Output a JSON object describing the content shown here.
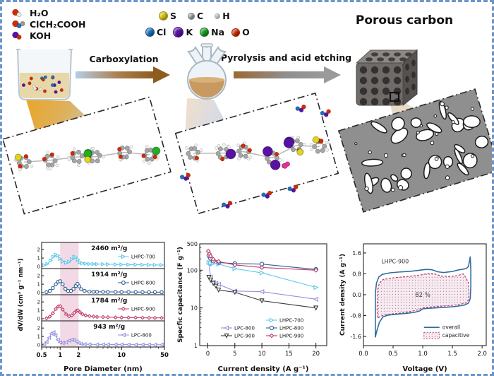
{
  "scheme": {
    "product_title": "Porous carbon",
    "step1_label": "Carboxylation",
    "step2_label": "Pyrolysis and acid etching",
    "reagents": [
      {
        "label": "H₂O",
        "icon_colors": [
          "#d42a00",
          "#e8e8e8"
        ]
      },
      {
        "label": "ClCH₂COOH",
        "icon_colors": [
          "#d42a00",
          "#1c6fbd",
          "#9a9a9a"
        ]
      },
      {
        "label": "KOH",
        "icon_colors": [
          "#5a10a5",
          "#d42a00"
        ]
      }
    ],
    "atoms_row1": [
      {
        "symbol": "S",
        "color": "#d9c414"
      },
      {
        "symbol": "C",
        "color": "#a9a9a9"
      },
      {
        "symbol": "H",
        "color": "#ececec"
      }
    ],
    "atoms_row2": [
      {
        "symbol": "Cl",
        "color": "#1c6fbd"
      },
      {
        "symbol": "K",
        "color": "#5a10a5"
      },
      {
        "symbol": "Na",
        "color": "#17a01e"
      },
      {
        "symbol": "O",
        "color": "#d42a00"
      }
    ]
  },
  "chart_data": [
    {
      "type": "line",
      "id": "psd",
      "xlabel": "Pore Diameter (nm)",
      "ylabel": "dV/dW (cm³ g⁻¹ nm⁻¹)",
      "x_scale": "log",
      "xlim": [
        0.5,
        50
      ],
      "x_ticks": [
        0.5,
        1,
        2,
        10,
        50
      ],
      "x_minor": [
        0.6,
        0.7,
        0.8,
        0.9,
        3,
        4,
        5,
        6,
        7,
        8,
        9,
        20,
        30,
        40
      ],
      "panel_ylim": [
        0,
        2.35
      ],
      "panel_yticks": [
        0,
        1,
        2
      ],
      "highlight_band": [
        1,
        2
      ],
      "band_color": "#e9b9cf",
      "panels": [
        {
          "area": "2460 m²/g",
          "name": "LHPC-700",
          "color": "#5fc8ea",
          "marker": "triangle-right",
          "x": [
            0.55,
            0.62,
            0.7,
            0.78,
            0.85,
            0.92,
            1.0,
            1.1,
            1.25,
            1.4,
            1.55,
            1.7,
            1.8,
            1.95,
            2.1,
            2.3,
            2.6,
            3,
            3.5,
            4,
            5,
            6,
            8,
            10,
            13,
            17,
            22,
            28,
            35,
            45
          ],
          "y": [
            0.15,
            0.3,
            0.7,
            1.15,
            1.4,
            1.3,
            0.9,
            0.6,
            0.45,
            0.55,
            0.85,
            1.15,
            1.1,
            0.8,
            0.5,
            0.38,
            0.33,
            0.3,
            0.29,
            0.28,
            0.27,
            0.26,
            0.24,
            0.23,
            0.22,
            0.21,
            0.2,
            0.19,
            0.18,
            0.17
          ]
        },
        {
          "area": "1914 m²/g",
          "name": "LHPC-800",
          "color": "#2e5e93",
          "marker": "circle",
          "x": [
            0.6,
            0.68,
            0.76,
            0.85,
            0.93,
            1.0,
            1.1,
            1.22,
            1.35,
            1.5,
            1.65,
            1.8,
            1.92,
            2.05,
            2.2,
            2.5,
            3,
            3.5,
            4,
            5,
            6,
            8,
            10,
            13,
            17,
            22,
            28,
            35,
            45
          ],
          "y": [
            0.05,
            0.2,
            0.55,
            1.0,
            1.3,
            1.35,
            1.0,
            0.45,
            0.2,
            0.2,
            0.45,
            0.8,
            1.05,
            0.75,
            0.4,
            0.2,
            0.12,
            0.1,
            0.1,
            0.09,
            0.08,
            0.08,
            0.07,
            0.07,
            0.06,
            0.06,
            0.05,
            0.05,
            0.05
          ]
        },
        {
          "area": "1784 m²/g",
          "name": "LHPC-900",
          "color": "#c23a68",
          "marker": "diamond",
          "x": [
            0.6,
            0.68,
            0.76,
            0.85,
            0.93,
            1.0,
            1.1,
            1.25,
            1.4,
            1.55,
            1.7,
            1.85,
            1.95,
            2.1,
            2.3,
            2.6,
            3,
            3.5,
            4,
            5,
            6,
            8,
            10,
            13,
            17,
            22,
            28,
            35,
            45
          ],
          "y": [
            0.05,
            0.25,
            0.65,
            1.15,
            1.45,
            1.5,
            1.1,
            0.55,
            0.3,
            0.4,
            0.7,
            0.95,
            1.0,
            0.8,
            0.55,
            0.4,
            0.32,
            0.26,
            0.22,
            0.2,
            0.18,
            0.16,
            0.15,
            0.14,
            0.13,
            0.12,
            0.11,
            0.1,
            0.1
          ]
        },
        {
          "area": "943 m²/g",
          "name": "LPC-800",
          "color": "#9292dd",
          "marker": "triangle-left",
          "x": [
            0.55,
            0.6,
            0.66,
            0.72,
            0.78,
            0.84,
            0.92,
            1.0,
            1.1,
            1.25,
            1.4,
            1.55,
            1.7,
            1.85,
            2.0,
            2.2,
            2.5,
            3,
            4,
            5,
            6,
            8,
            10,
            13,
            17,
            22,
            28,
            35,
            45
          ],
          "y": [
            0.1,
            0.35,
            0.85,
            1.35,
            1.5,
            1.15,
            0.6,
            0.3,
            0.22,
            0.3,
            0.5,
            0.62,
            0.58,
            0.4,
            0.22,
            0.12,
            0.08,
            0.06,
            0.05,
            0.05,
            0.04,
            0.04,
            0.04,
            0.03,
            0.03,
            0.03,
            0.03,
            0.02,
            0.02
          ]
        }
      ]
    },
    {
      "type": "scatter",
      "id": "rate",
      "xlabel": "Current density (A g⁻¹)",
      "ylabel": "Specfic capacitance (F g⁻¹)",
      "y_scale": "log",
      "ylim": [
        1,
        500
      ],
      "y_ticks": [
        1,
        10,
        100,
        500
      ],
      "y_minor": [
        2,
        3,
        4,
        5,
        6,
        7,
        8,
        9,
        20,
        30,
        40,
        50,
        60,
        70,
        80,
        90,
        200,
        300,
        400
      ],
      "xlim": [
        -1.5,
        22
      ],
      "x_ticks": [
        0,
        5,
        10,
        15,
        20
      ],
      "series": [
        {
          "name": "LPC-800",
          "color": "#9292dd",
          "marker": "triangle-left",
          "x": [
            0.2,
            0.5,
            1,
            1.5,
            2,
            5,
            10,
            20
          ],
          "y": [
            150,
            65,
            48,
            45,
            42,
            28,
            27,
            17
          ]
        },
        {
          "name": "LPC-900",
          "color": "#3a3a3a",
          "marker": "triangle-down",
          "x": [
            0.2,
            0.5,
            1,
            1.5,
            2,
            5,
            10,
            20
          ],
          "y": [
            65,
            55,
            45,
            38,
            30,
            26,
            15.5,
            10
          ]
        },
        {
          "name": "LHPC-700",
          "color": "#5fc8ea",
          "marker": "triangle-right",
          "x": [
            0.2,
            0.5,
            1,
            2,
            5,
            10,
            20
          ],
          "y": [
            160,
            155,
            150,
            145,
            110,
            85,
            35
          ]
        },
        {
          "name": "LHPC-800",
          "color": "#2e5e93",
          "marker": "circle",
          "x": [
            0.2,
            0.5,
            1,
            2,
            5,
            10,
            20
          ],
          "y": [
            240,
            205,
            175,
            160,
            150,
            145,
            105
          ]
        },
        {
          "name": "LHPC-900",
          "color": "#c23a68",
          "marker": "diamond",
          "x": [
            0.1,
            0.3,
            0.5,
            1,
            2,
            5,
            10,
            20
          ],
          "y": [
            320,
            270,
            235,
            195,
            170,
            138,
            118,
            100
          ]
        }
      ],
      "legend_columns": [
        [
          "LPC-800",
          "LPC-900"
        ],
        [
          "LHPC-700",
          "LHPC-800",
          "LHPC-900"
        ]
      ]
    },
    {
      "type": "cv",
      "id": "cv",
      "xlabel": "Voltage (V)",
      "ylabel": "Current density (A g⁻¹)",
      "xlim": [
        0,
        2.07
      ],
      "x_ticks": [
        "0.0",
        "0.5",
        "1.0",
        "1.5",
        "2.0"
      ],
      "ylim": [
        -1.95,
        1.95
      ],
      "y_ticks": [
        "-1.6",
        "-0.8",
        "0.0",
        "0.8",
        "1.6"
      ],
      "annotation": "LHPC-900",
      "percentage": "82 %",
      "overall_color": "#2e6da0",
      "capacitive_edge": "#c23a68",
      "capacitive_fill_bg": "#f7eaf0",
      "legend": [
        {
          "name": "overall"
        },
        {
          "name": "capacitive"
        }
      ],
      "overall": [
        [
          0.2,
          0.05
        ],
        [
          0.22,
          0.45
        ],
        [
          0.26,
          0.68
        ],
        [
          0.32,
          0.78
        ],
        [
          0.45,
          0.84
        ],
        [
          0.6,
          0.87
        ],
        [
          0.8,
          0.9
        ],
        [
          0.95,
          0.94
        ],
        [
          1.05,
          0.97
        ],
        [
          1.15,
          0.96
        ],
        [
          1.25,
          0.88
        ],
        [
          1.35,
          0.85
        ],
        [
          1.5,
          0.89
        ],
        [
          1.6,
          0.95
        ],
        [
          1.68,
          0.98
        ],
        [
          1.73,
          1.0
        ],
        [
          1.77,
          1.08
        ],
        [
          1.8,
          1.45
        ],
        [
          1.81,
          1.0
        ],
        [
          1.81,
          0.3
        ],
        [
          1.8,
          -0.15
        ],
        [
          1.77,
          -0.32
        ],
        [
          1.7,
          -0.4
        ],
        [
          1.55,
          -0.45
        ],
        [
          1.4,
          -0.48
        ],
        [
          1.25,
          -0.5
        ],
        [
          1.1,
          -0.52
        ],
        [
          1.0,
          -0.54
        ],
        [
          0.95,
          -0.62
        ],
        [
          0.85,
          -0.68
        ],
        [
          0.7,
          -0.72
        ],
        [
          0.55,
          -0.75
        ],
        [
          0.42,
          -0.78
        ],
        [
          0.33,
          -0.85
        ],
        [
          0.27,
          -1.05
        ],
        [
          0.23,
          -1.35
        ],
        [
          0.2,
          -1.62
        ],
        [
          0.2,
          0.05
        ]
      ],
      "capacitive": [
        [
          0.24,
          0.2
        ],
        [
          0.27,
          0.45
        ],
        [
          0.33,
          0.58
        ],
        [
          0.45,
          0.63
        ],
        [
          0.6,
          0.67
        ],
        [
          0.8,
          0.71
        ],
        [
          0.95,
          0.75
        ],
        [
          1.1,
          0.82
        ],
        [
          1.2,
          0.8
        ],
        [
          1.3,
          0.72
        ],
        [
          1.45,
          0.7
        ],
        [
          1.58,
          0.73
        ],
        [
          1.68,
          0.8
        ],
        [
          1.73,
          0.65
        ],
        [
          1.77,
          0.45
        ],
        [
          1.78,
          0.1
        ],
        [
          1.77,
          -0.2
        ],
        [
          1.72,
          -0.32
        ],
        [
          1.6,
          -0.38
        ],
        [
          1.45,
          -0.42
        ],
        [
          1.3,
          -0.44
        ],
        [
          1.15,
          -0.47
        ],
        [
          1.0,
          -0.5
        ],
        [
          0.92,
          -0.58
        ],
        [
          0.8,
          -0.64
        ],
        [
          0.65,
          -0.7
        ],
        [
          0.5,
          -0.73
        ],
        [
          0.4,
          -0.76
        ],
        [
          0.32,
          -0.8
        ],
        [
          0.27,
          -0.86
        ],
        [
          0.24,
          -0.9
        ],
        [
          0.23,
          -0.55
        ],
        [
          0.24,
          0.2
        ]
      ]
    }
  ]
}
